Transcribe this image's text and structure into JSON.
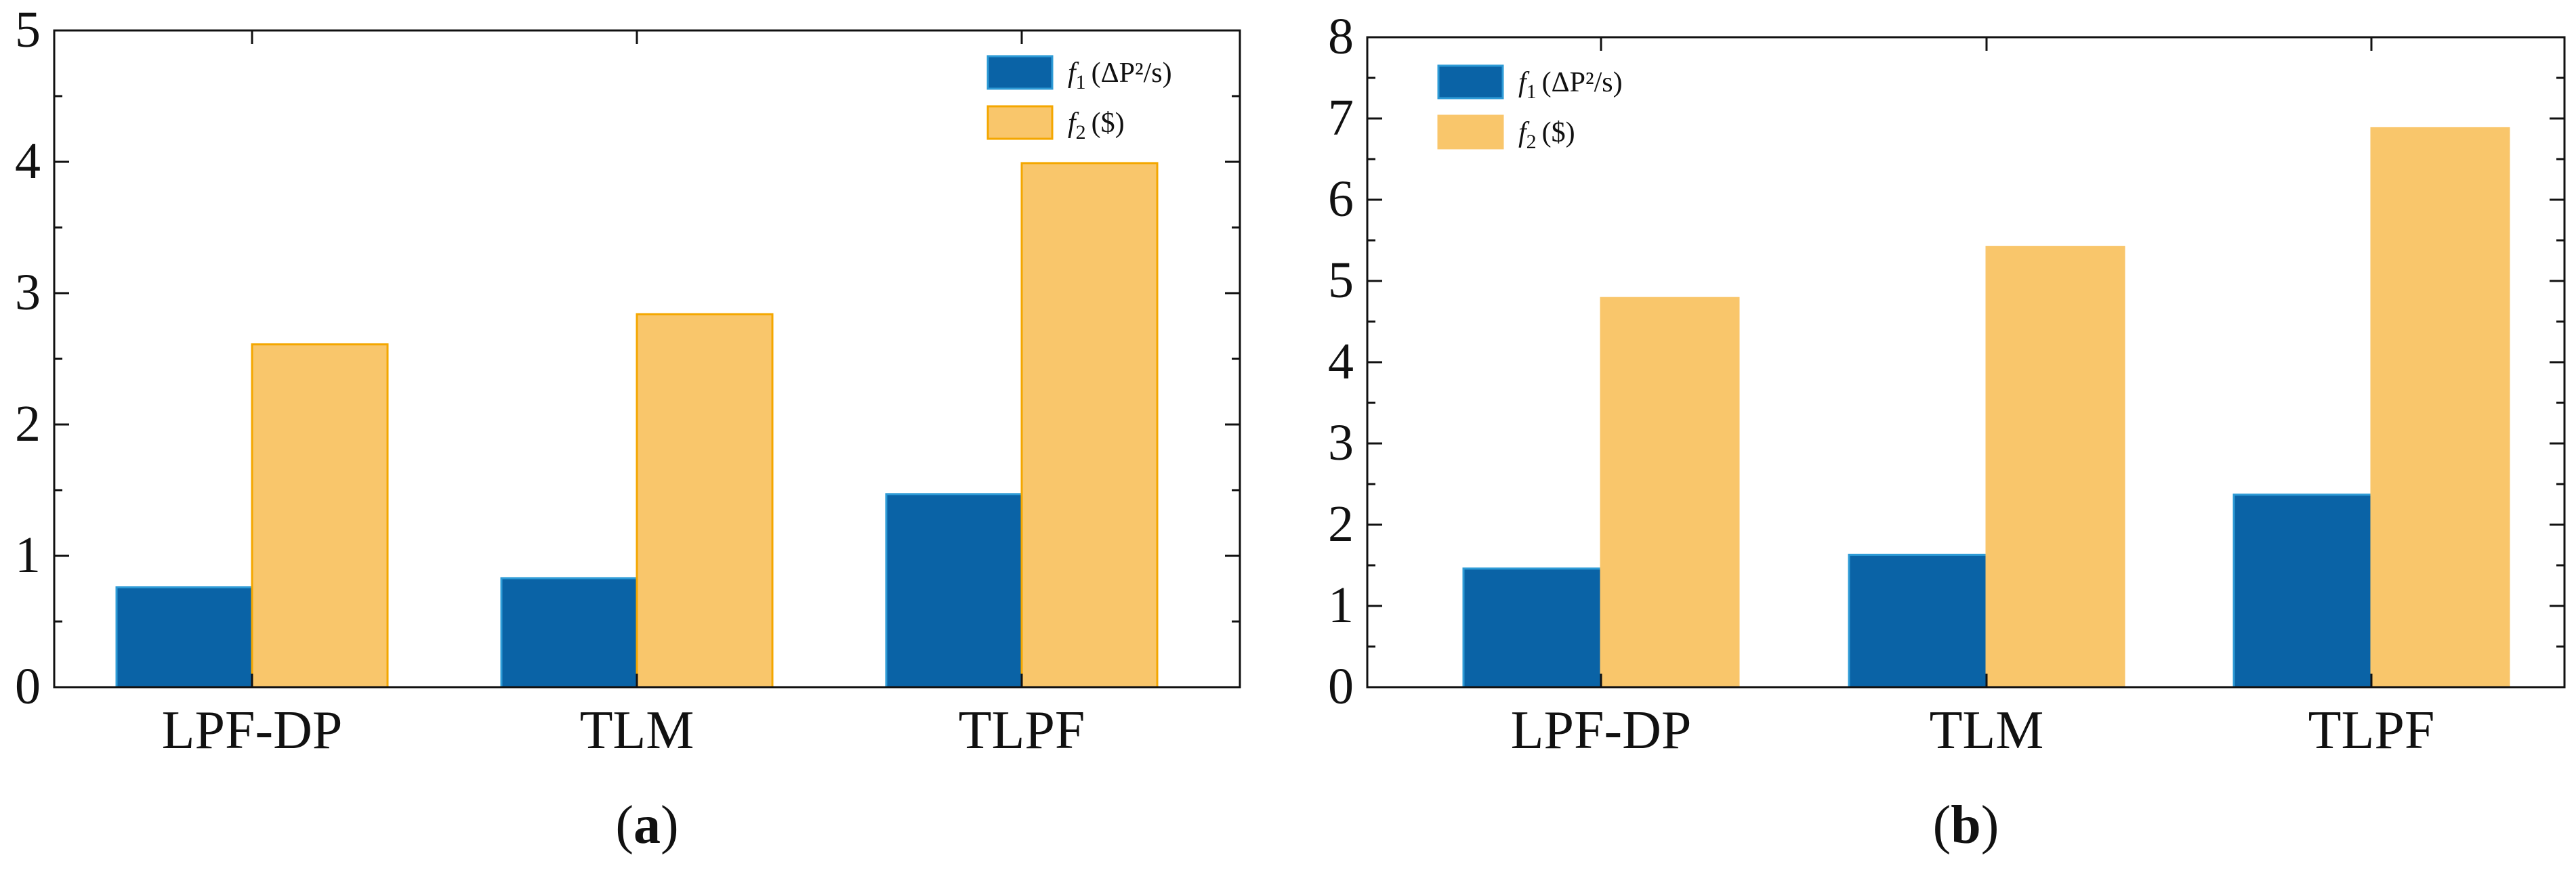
{
  "chart_data": [
    {
      "type": "bar",
      "panel_label": "a",
      "categories": [
        "LPF-DP",
        "TLM",
        "TLPF"
      ],
      "series": [
        {
          "name": "f1",
          "legend_sub": "1",
          "legend_unit": "(ΔP²/s)",
          "color": "#0a63a6",
          "edge": "#2e9bd6",
          "values": [
            0.76,
            0.83,
            1.47
          ]
        },
        {
          "name": "f2",
          "legend_sub": "2",
          "legend_unit": "($)",
          "color": "#f9c66b",
          "edge": "#f4a700",
          "values": [
            2.61,
            2.84,
            3.99
          ]
        }
      ],
      "yticks": [
        "0",
        "1",
        "2",
        "3",
        "4",
        "5"
      ],
      "ylim": [
        0,
        5
      ],
      "legend_position": "top-right",
      "xlabel": "",
      "ylabel": ""
    },
    {
      "type": "bar",
      "panel_label": "b",
      "categories": [
        "LPF-DP",
        "TLM",
        "TLPF"
      ],
      "series": [
        {
          "name": "f1",
          "legend_sub": "1",
          "legend_unit": "(ΔP²/s)",
          "color": "#0a63a6",
          "edge": "#2e9bd6",
          "values": [
            1.46,
            1.63,
            2.37
          ]
        },
        {
          "name": "f2",
          "legend_sub": "2",
          "legend_unit": "($)",
          "color": "#f9c66b",
          "edge": "#f9c66b",
          "values": [
            4.79,
            5.42,
            6.88
          ]
        }
      ],
      "yticks": [
        "0",
        "1",
        "2",
        "3",
        "4",
        "5",
        "6",
        "7",
        "8"
      ],
      "ylim": [
        0,
        8
      ],
      "legend_position": "top-left",
      "xlabel": "",
      "ylabel": ""
    }
  ]
}
